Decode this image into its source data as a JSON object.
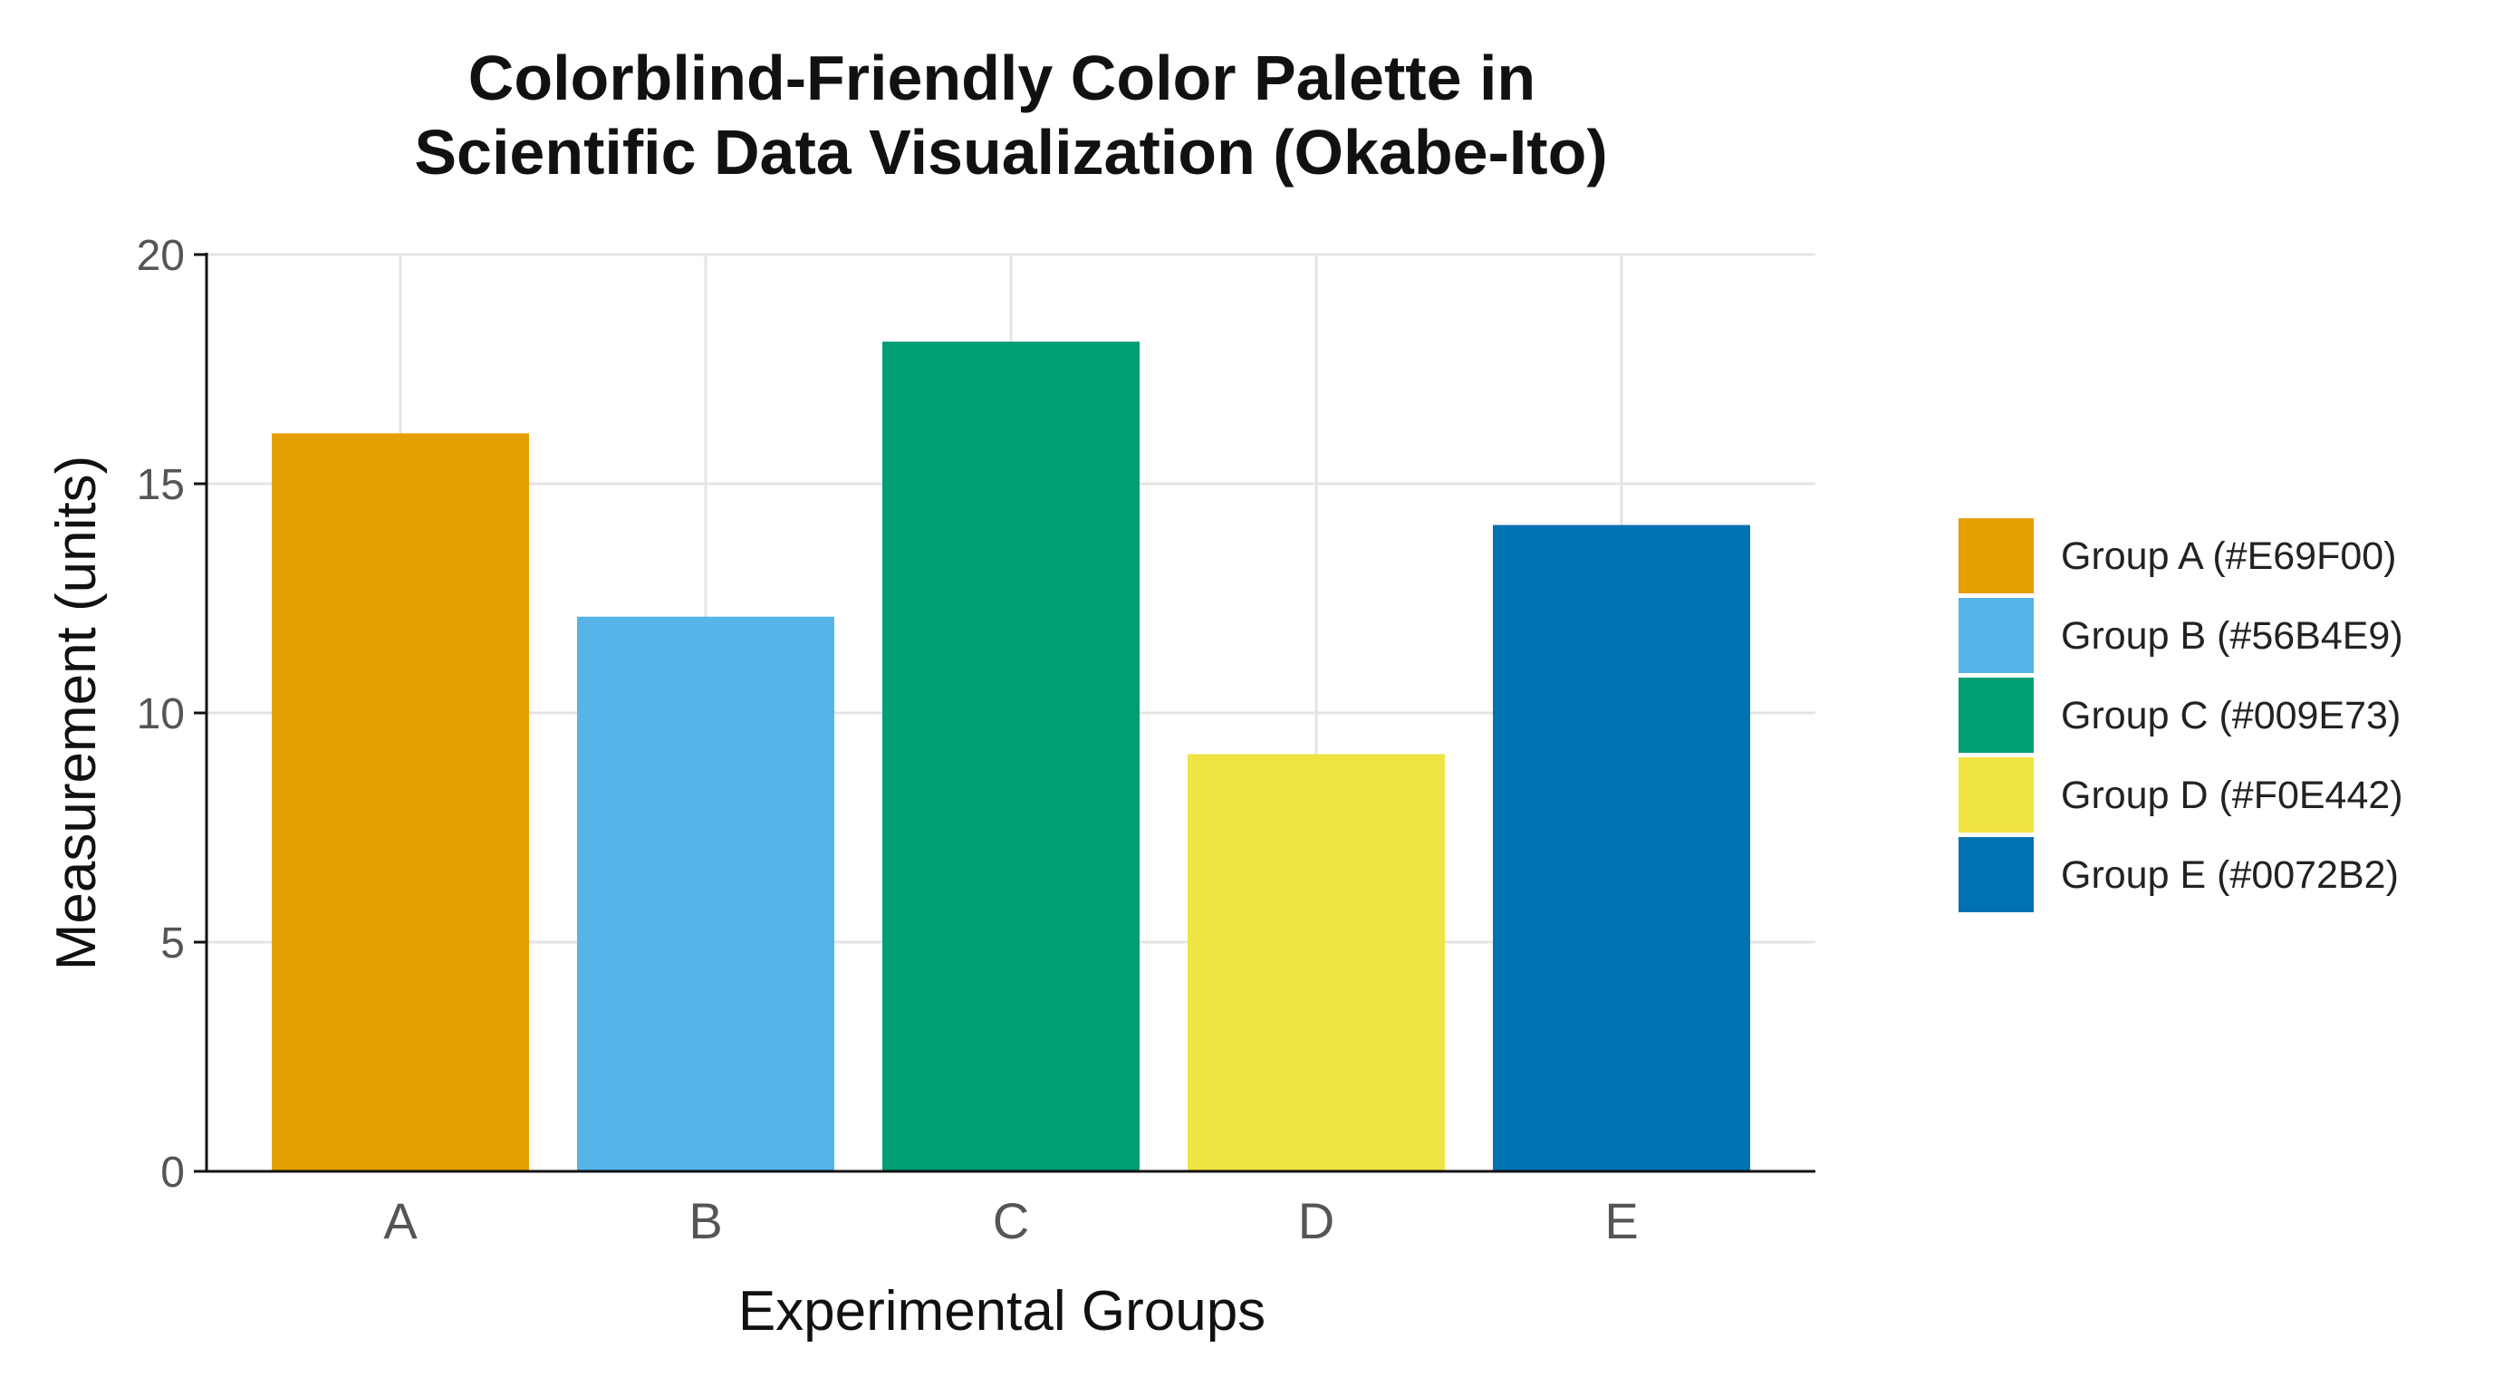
{
  "chart_data": {
    "type": "bar",
    "title_lines": [
      "Colorblind-Friendly Color Palette in",
      "Scientific Data Visualization (Okabe-Ito)"
    ],
    "xlabel": "Experimental Groups",
    "ylabel": "Measurement (units)",
    "categories": [
      "A",
      "B",
      "C",
      "D",
      "E"
    ],
    "values": [
      16.1,
      12.1,
      18.1,
      9.1,
      14.1
    ],
    "colors": [
      "#E69F00",
      "#56B4E9",
      "#009E73",
      "#F0E442",
      "#0072B2"
    ],
    "ylim": [
      0,
      20
    ],
    "yticks": [
      0,
      5,
      10,
      15,
      20
    ],
    "grid": true,
    "legend_position": "right",
    "legend": [
      {
        "label": "Group A (#E69F00)",
        "color": "#E69F00"
      },
      {
        "label": "Group B (#56B4E9)",
        "color": "#56B4E9"
      },
      {
        "label": "Group C (#009E73)",
        "color": "#009E73"
      },
      {
        "label": "Group D (#F0E442)",
        "color": "#F0E442"
      },
      {
        "label": "Group E (#0072B2)",
        "color": "#0072B2"
      }
    ]
  }
}
